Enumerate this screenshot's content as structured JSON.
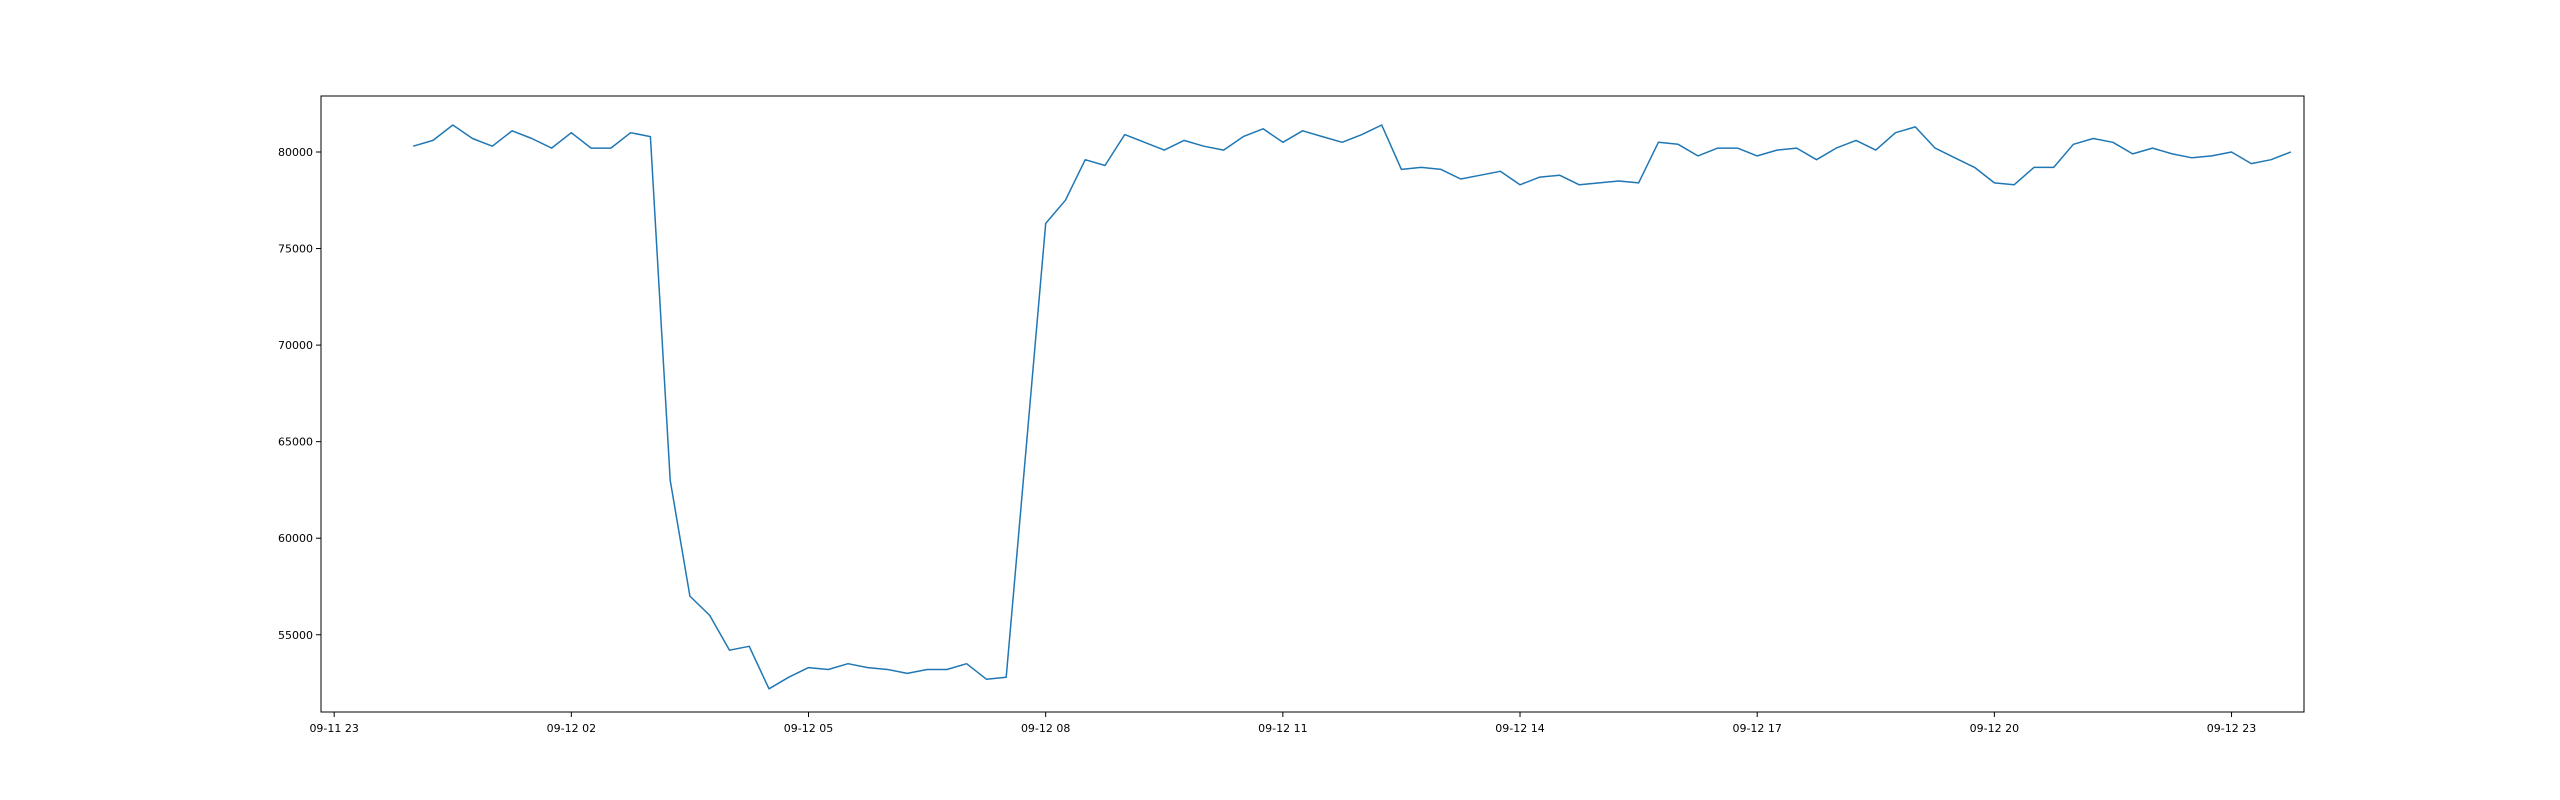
{
  "chart_data": {
    "type": "line",
    "title": "",
    "xlabel": "",
    "ylabel": "",
    "x_tick_labels": [
      "09-11 23",
      "09-12 02",
      "09-12 05",
      "09-12 08",
      "09-12 11",
      "09-12 14",
      "09-12 17",
      "09-12 20",
      "09-12 23"
    ],
    "x_ticks": [
      "2024-09-11 23:00",
      "2024-09-12 02:00",
      "2024-09-12 05:00",
      "2024-09-12 08:00",
      "2024-09-12 11:00",
      "2024-09-12 14:00",
      "2024-09-12 17:00",
      "2024-09-12 20:00",
      "2024-09-12 23:00"
    ],
    "y_tick_labels": [
      "55000",
      "60000",
      "65000",
      "70000",
      "75000",
      "80000"
    ],
    "y_ticks": [
      55000,
      60000,
      65000,
      70000,
      75000,
      80000
    ],
    "xlim": [
      "2024-09-11 22:50",
      "2024-09-12 23:55"
    ],
    "ylim": [
      51000,
      82900
    ],
    "grid": false,
    "series": [
      {
        "color": "#1f77b4",
        "points": [
          [
            "2024-09-12 00:00",
            80300
          ],
          [
            "2024-09-12 00:15",
            80600
          ],
          [
            "2024-09-12 00:30",
            81400
          ],
          [
            "2024-09-12 00:45",
            80700
          ],
          [
            "2024-09-12 01:00",
            80300
          ],
          [
            "2024-09-12 01:15",
            81100
          ],
          [
            "2024-09-12 01:30",
            80700
          ],
          [
            "2024-09-12 01:45",
            80200
          ],
          [
            "2024-09-12 02:00",
            81000
          ],
          [
            "2024-09-12 02:15",
            80200
          ],
          [
            "2024-09-12 02:30",
            80200
          ],
          [
            "2024-09-12 02:45",
            81000
          ],
          [
            "2024-09-12 03:00",
            80800
          ],
          [
            "2024-09-12 03:15",
            63000
          ],
          [
            "2024-09-12 03:30",
            57000
          ],
          [
            "2024-09-12 03:45",
            56000
          ],
          [
            "2024-09-12 04:00",
            54200
          ],
          [
            "2024-09-12 04:15",
            54400
          ],
          [
            "2024-09-12 04:30",
            52200
          ],
          [
            "2024-09-12 04:45",
            52800
          ],
          [
            "2024-09-12 05:00",
            53300
          ],
          [
            "2024-09-12 05:15",
            53200
          ],
          [
            "2024-09-12 05:30",
            53500
          ],
          [
            "2024-09-12 05:45",
            53300
          ],
          [
            "2024-09-12 06:00",
            53200
          ],
          [
            "2024-09-12 06:15",
            53000
          ],
          [
            "2024-09-12 06:30",
            53200
          ],
          [
            "2024-09-12 06:45",
            53200
          ],
          [
            "2024-09-12 07:00",
            53500
          ],
          [
            "2024-09-12 07:15",
            52700
          ],
          [
            "2024-09-12 07:30",
            52800
          ],
          [
            "2024-09-12 08:00",
            76300
          ],
          [
            "2024-09-12 08:15",
            77500
          ],
          [
            "2024-09-12 08:30",
            79600
          ],
          [
            "2024-09-12 08:45",
            79300
          ],
          [
            "2024-09-12 09:00",
            80900
          ],
          [
            "2024-09-12 09:15",
            80500
          ],
          [
            "2024-09-12 09:30",
            80100
          ],
          [
            "2024-09-12 09:45",
            80600
          ],
          [
            "2024-09-12 10:00",
            80300
          ],
          [
            "2024-09-12 10:15",
            80100
          ],
          [
            "2024-09-12 10:30",
            80800
          ],
          [
            "2024-09-12 10:45",
            81200
          ],
          [
            "2024-09-12 11:00",
            80500
          ],
          [
            "2024-09-12 11:15",
            81100
          ],
          [
            "2024-09-12 11:30",
            80800
          ],
          [
            "2024-09-12 11:45",
            80500
          ],
          [
            "2024-09-12 12:00",
            80900
          ],
          [
            "2024-09-12 12:15",
            81400
          ],
          [
            "2024-09-12 12:30",
            79100
          ],
          [
            "2024-09-12 12:45",
            79200
          ],
          [
            "2024-09-12 13:00",
            79100
          ],
          [
            "2024-09-12 13:15",
            78600
          ],
          [
            "2024-09-12 13:30",
            78800
          ],
          [
            "2024-09-12 13:45",
            79000
          ],
          [
            "2024-09-12 14:00",
            78300
          ],
          [
            "2024-09-12 14:15",
            78700
          ],
          [
            "2024-09-12 14:30",
            78800
          ],
          [
            "2024-09-12 14:45",
            78300
          ],
          [
            "2024-09-12 15:00",
            78400
          ],
          [
            "2024-09-12 15:15",
            78500
          ],
          [
            "2024-09-12 15:30",
            78400
          ],
          [
            "2024-09-12 15:45",
            80500
          ],
          [
            "2024-09-12 16:00",
            80400
          ],
          [
            "2024-09-12 16:15",
            79800
          ],
          [
            "2024-09-12 16:30",
            80200
          ],
          [
            "2024-09-12 16:45",
            80200
          ],
          [
            "2024-09-12 17:00",
            79800
          ],
          [
            "2024-09-12 17:15",
            80100
          ],
          [
            "2024-09-12 17:30",
            80200
          ],
          [
            "2024-09-12 17:45",
            79600
          ],
          [
            "2024-09-12 18:00",
            80200
          ],
          [
            "2024-09-12 18:15",
            80600
          ],
          [
            "2024-09-12 18:30",
            80100
          ],
          [
            "2024-09-12 18:45",
            81000
          ],
          [
            "2024-09-12 19:00",
            81300
          ],
          [
            "2024-09-12 19:15",
            80200
          ],
          [
            "2024-09-12 19:30",
            79700
          ],
          [
            "2024-09-12 19:45",
            79200
          ],
          [
            "2024-09-12 20:00",
            78400
          ],
          [
            "2024-09-12 20:15",
            78300
          ],
          [
            "2024-09-12 20:30",
            79200
          ],
          [
            "2024-09-12 20:45",
            79200
          ],
          [
            "2024-09-12 21:00",
            80400
          ],
          [
            "2024-09-12 21:15",
            80700
          ],
          [
            "2024-09-12 21:30",
            80500
          ],
          [
            "2024-09-12 21:45",
            79900
          ],
          [
            "2024-09-12 22:00",
            80200
          ],
          [
            "2024-09-12 22:15",
            79900
          ],
          [
            "2024-09-12 22:30",
            79700
          ],
          [
            "2024-09-12 22:45",
            79800
          ],
          [
            "2024-09-12 23:00",
            80000
          ],
          [
            "2024-09-12 23:15",
            79400
          ],
          [
            "2024-09-12 23:30",
            79600
          ],
          [
            "2024-09-12 23:45",
            80000
          ]
        ]
      }
    ]
  }
}
